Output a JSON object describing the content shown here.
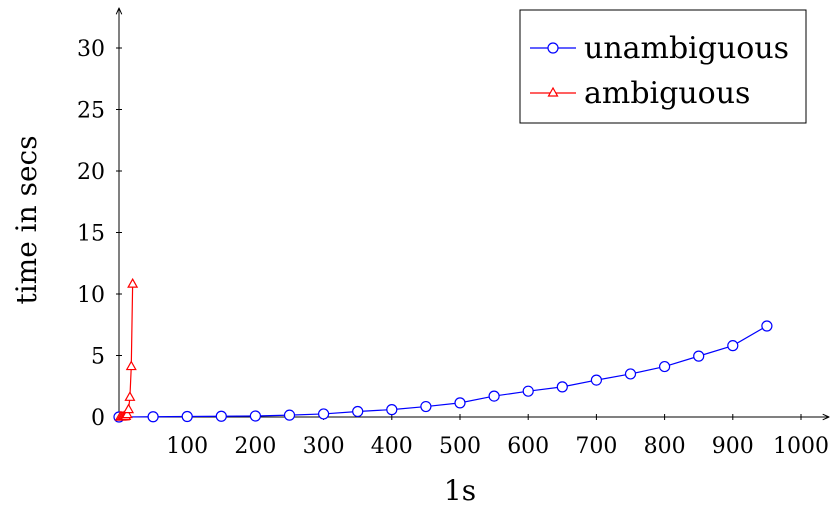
{
  "chart_data": {
    "type": "line",
    "xlabel": "1s",
    "ylabel": "time in secs",
    "xlim": [
      0,
      1000
    ],
    "ylim": [
      0,
      32
    ],
    "x_ticks": [
      100,
      200,
      300,
      400,
      500,
      600,
      700,
      800,
      900,
      1000
    ],
    "y_ticks": [
      0,
      5,
      10,
      15,
      20,
      25,
      30
    ],
    "grid": false,
    "legend_position": "top-right",
    "series": [
      {
        "name": "unambiguous",
        "color": "#0000ff",
        "marker": "circle",
        "x": [
          0,
          50,
          100,
          150,
          200,
          250,
          300,
          350,
          400,
          450,
          500,
          550,
          600,
          650,
          700,
          750,
          800,
          850,
          900,
          950
        ],
        "y": [
          0.0,
          0.02,
          0.04,
          0.06,
          0.08,
          0.15,
          0.25,
          0.45,
          0.6,
          0.85,
          1.15,
          1.7,
          2.1,
          2.45,
          3.0,
          3.5,
          4.1,
          4.95,
          5.8,
          7.4
        ]
      },
      {
        "name": "ambiguous",
        "color": "#ff0000",
        "marker": "triangle",
        "x": [
          2,
          4,
          6,
          8,
          10,
          12,
          14,
          16,
          18,
          20
        ],
        "y": [
          0.0,
          0.0,
          0.01,
          0.02,
          0.05,
          0.2,
          0.6,
          1.6,
          4.1,
          10.8
        ]
      }
    ]
  }
}
